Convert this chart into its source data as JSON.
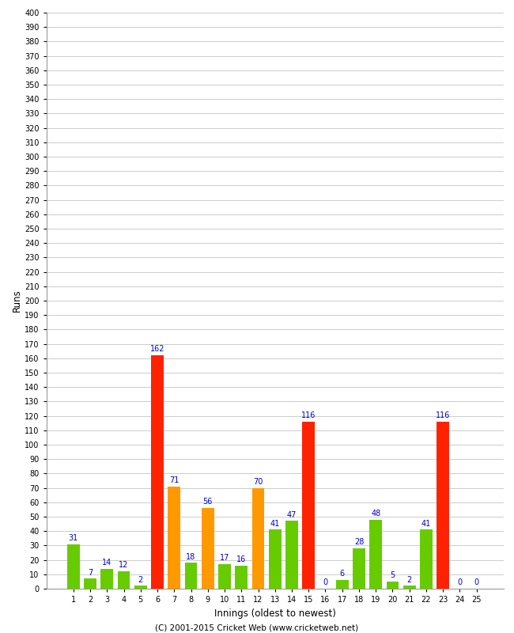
{
  "innings": [
    1,
    2,
    3,
    4,
    5,
    6,
    7,
    8,
    9,
    10,
    11,
    12,
    13,
    14,
    15,
    16,
    17,
    18,
    19,
    20,
    21,
    22,
    23,
    24,
    25
  ],
  "values": [
    31,
    7,
    14,
    12,
    2,
    162,
    71,
    18,
    56,
    17,
    16,
    70,
    41,
    47,
    116,
    0,
    6,
    28,
    48,
    5,
    2,
    41,
    116,
    0,
    0
  ],
  "colors": [
    "#66cc00",
    "#66cc00",
    "#66cc00",
    "#66cc00",
    "#66cc00",
    "#ff2200",
    "#ff9900",
    "#66cc00",
    "#ff9900",
    "#66cc00",
    "#66cc00",
    "#ff9900",
    "#66cc00",
    "#66cc00",
    "#ff2200",
    "#66cc00",
    "#66cc00",
    "#66cc00",
    "#66cc00",
    "#66cc00",
    "#66cc00",
    "#66cc00",
    "#ff2200",
    "#66cc00",
    "#66cc00"
  ],
  "xlabel": "Innings (oldest to newest)",
  "ylabel": "Runs",
  "ytick_step": 10,
  "ylim": [
    0,
    400
  ],
  "footer": "(C) 2001-2015 Cricket Web (www.cricketweb.net)",
  "bg_color": "#ffffff",
  "grid_color": "#cccccc",
  "label_color": "#0000cc",
  "bar_width": 0.75,
  "tick_color": "#000000",
  "spine_color": "#999999"
}
